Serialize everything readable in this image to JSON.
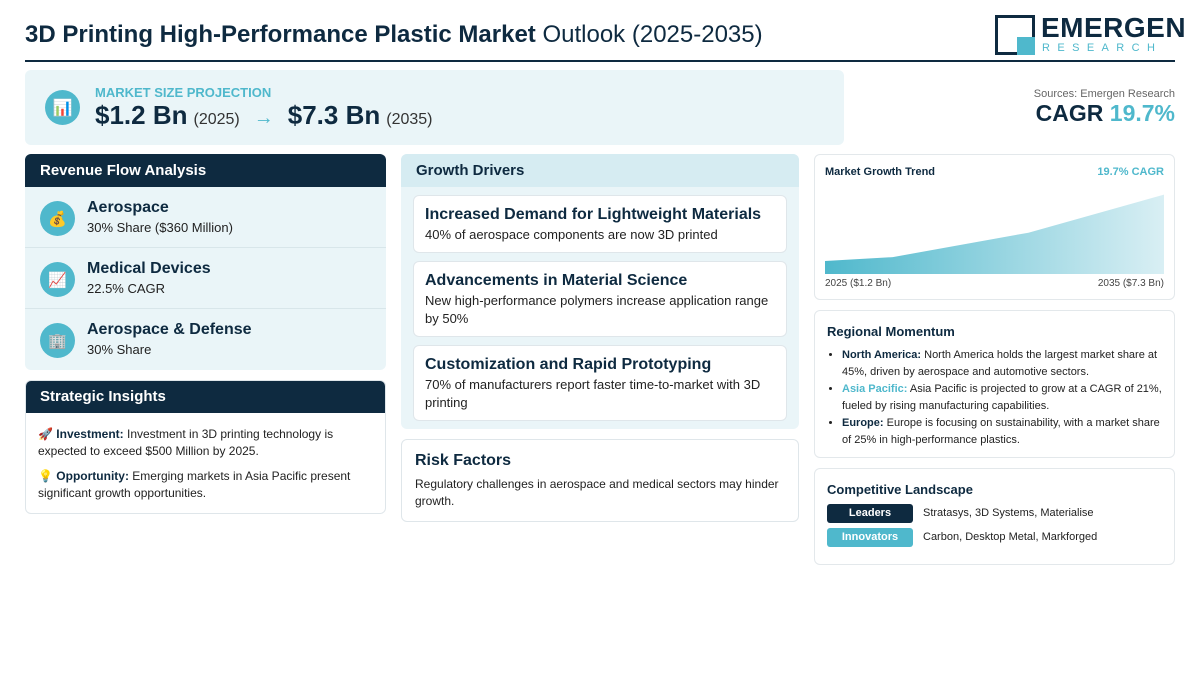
{
  "header": {
    "title_bold": "3D Printing High-Performance Plastic Market",
    "title_rest": "Outlook (2025-2035)",
    "logo_name": "EMERGEN",
    "logo_sub": "RESEARCH"
  },
  "projection": {
    "label": "MARKET SIZE PROJECTION",
    "start_value": "$1.2 Bn",
    "start_year": "(2025)",
    "arrow": "→",
    "end_value": "$7.3 Bn",
    "end_year": "(2035)",
    "icon": "bar-chart-icon"
  },
  "sources": "Sources: Emergen Research",
  "cagr": {
    "label": "CAGR",
    "value": "19.7%"
  },
  "revenue": {
    "title": "Revenue Flow Analysis",
    "items": [
      {
        "name": "Aerospace",
        "desc": "30% Share ($360 Million)",
        "icon": "money-bag-icon",
        "glyph": "💰"
      },
      {
        "name": "Medical Devices",
        "desc": "22.5% CAGR",
        "icon": "trend-up-icon",
        "glyph": "📈"
      },
      {
        "name": "Aerospace & Defense",
        "desc": "30% Share",
        "icon": "building-icon",
        "glyph": "🏢"
      }
    ]
  },
  "insights": {
    "title": "Strategic Insights",
    "items": [
      {
        "icon": "rocket-icon",
        "glyph": "🚀",
        "label": "Investment:",
        "text": "Investment in 3D printing technology is expected to exceed $500 Million by 2025."
      },
      {
        "icon": "lightbulb-icon",
        "glyph": "💡",
        "label": "Opportunity:",
        "text": "Emerging markets in Asia Pacific present significant growth opportunities."
      }
    ]
  },
  "drivers": {
    "title": "Growth Drivers",
    "items": [
      {
        "title": "Increased Demand for Lightweight Materials",
        "desc": "40% of aerospace components are now 3D printed"
      },
      {
        "title": "Advancements in Material Science",
        "desc": "New high-performance polymers increase application range by 50%"
      },
      {
        "title": "Customization and Rapid Prototyping",
        "desc": "70% of manufacturers report faster time-to-market with 3D printing"
      }
    ]
  },
  "risk": {
    "title": "Risk Factors",
    "desc": "Regulatory challenges in aerospace and medical sectors may hinder growth."
  },
  "trend": {
    "title": "Market Growth Trend",
    "cagr": "19.7% CAGR",
    "start_label": "2025 ($1.2 Bn)",
    "end_label": "2035 ($7.3 Bn)"
  },
  "chart_data": {
    "type": "area",
    "x": [
      2025,
      2027,
      2031,
      2035
    ],
    "values": [
      1.2,
      1.55,
      3.8,
      7.3
    ],
    "ylim": [
      0,
      8
    ],
    "grid": false,
    "colors": {
      "fill_start": "#4fb8cc",
      "fill_end": "#d9eff4"
    }
  },
  "regional": {
    "title": "Regional Momentum",
    "items": [
      {
        "region": "North America:",
        "text": "North America holds the largest market share at 45%, driven by aerospace and automotive sectors.",
        "accent": false
      },
      {
        "region": "Asia Pacific:",
        "text": "Asia Pacific is projected to grow at a CAGR of 21%, fueled by rising manufacturing capabilities.",
        "accent": true
      },
      {
        "region": "Europe:",
        "text": "Europe is focusing on sustainability, with a market share of 25% in high-performance plastics.",
        "accent": false
      }
    ]
  },
  "competitive": {
    "title": "Competitive Landscape",
    "rows": [
      {
        "badge": "Leaders",
        "names": "Stratasys, 3D Systems, Materialise"
      },
      {
        "badge": "Innovators",
        "names": "Carbon, Desktop Metal, Markforged"
      }
    ]
  },
  "colors": {
    "navy": "#0e2a40",
    "teal": "#4fb8cc",
    "panel": "#eaf5f8"
  }
}
